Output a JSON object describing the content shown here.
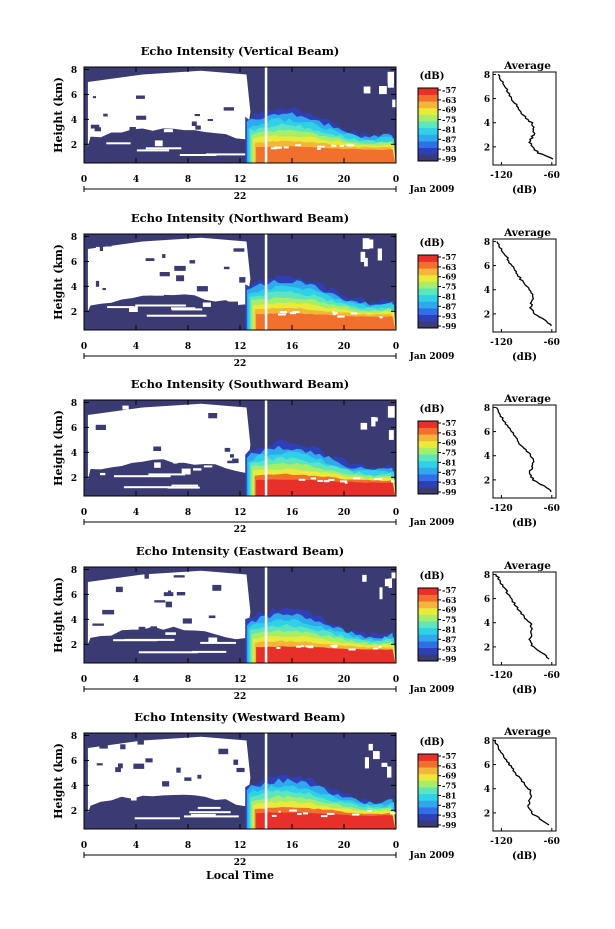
{
  "colors": {
    "background_fill": "#3b3b73",
    "scale": [
      "#3b3b73",
      "#2f3fb8",
      "#2f6fe8",
      "#2fa8ee",
      "#2fd0e8",
      "#5be6c0",
      "#a6ee6a",
      "#eaea3a",
      "#f5b43a",
      "#f2702e",
      "#e8302a"
    ]
  },
  "shared": {
    "time_ticks": [
      "0",
      "4",
      "8",
      "12",
      "16",
      "20",
      "0"
    ],
    "date_label": "22",
    "date_suffix": "Jan 2009",
    "height_label": "Height (km)",
    "height_ticks": [
      "2",
      "4",
      "6",
      "8"
    ],
    "unit_label": "(dB)",
    "colorbar_ticks": [
      "-57",
      "-63",
      "-69",
      "-75",
      "-81",
      "-87",
      "-93",
      "-99"
    ],
    "average_title": "Average",
    "average_xlabel": "(dB)",
    "x_axis_label": "Local Time"
  },
  "chart_data": [
    {
      "type": "heatmap",
      "title": "Echo Intensity (Vertical Beam)",
      "xlabel": "",
      "ylabel": "Height (km)",
      "xlim": [
        0,
        24
      ],
      "ylim": [
        0.5,
        8.2
      ],
      "colorbar": {
        "label": "(dB)",
        "range": [
          -99,
          -57
        ]
      },
      "surface_max_db": -60,
      "profile": {
        "title": "Average",
        "xlabel": "(dB)",
        "xticks": [
          "-120",
          "-60"
        ],
        "xlim": [
          -130,
          -55
        ],
        "ylim": [
          0.5,
          8.2
        ],
        "y": [
          1.0,
          1.5,
          2.0,
          2.5,
          3.0,
          3.5,
          4.0,
          4.5,
          5.0,
          5.5,
          6.0,
          6.5,
          7.0,
          7.5,
          8.0
        ],
        "x": [
          -58,
          -76,
          -84,
          -86,
          -82,
          -81,
          -84,
          -92,
          -98,
          -102,
          -108,
          -112,
          -116,
          -120,
          -124
        ]
      }
    },
    {
      "type": "heatmap",
      "title": "Echo Intensity (Northward Beam)",
      "xlabel": "",
      "ylabel": "Height (km)",
      "xlim": [
        0,
        24
      ],
      "ylim": [
        0.5,
        8.2
      ],
      "colorbar": {
        "label": "(dB)",
        "range": [
          -99,
          -57
        ]
      },
      "surface_max_db": -60,
      "profile": {
        "title": "Average",
        "xlabel": "(dB)",
        "xticks": [
          "-120",
          "-60"
        ],
        "xlim": [
          -130,
          -55
        ],
        "ylim": [
          0.5,
          8.2
        ],
        "y": [
          1.0,
          1.5,
          2.0,
          2.5,
          3.0,
          3.5,
          4.0,
          4.5,
          5.0,
          5.5,
          6.0,
          6.5,
          7.0,
          7.5,
          8.0
        ],
        "x": [
          -60,
          -68,
          -80,
          -85,
          -84,
          -82,
          -86,
          -93,
          -98,
          -103,
          -108,
          -112,
          -117,
          -121,
          -125
        ]
      }
    },
    {
      "type": "heatmap",
      "title": "Echo Intensity (Southward Beam)",
      "xlabel": "",
      "ylabel": "Height (km)",
      "xlim": [
        0,
        24
      ],
      "ylim": [
        0.5,
        8.2
      ],
      "colorbar": {
        "label": "(dB)",
        "range": [
          -99,
          -57
        ]
      },
      "surface_max_db": -58,
      "profile": {
        "title": "Average",
        "xlabel": "(dB)",
        "xticks": [
          "-120",
          "-60"
        ],
        "xlim": [
          -130,
          -55
        ],
        "ylim": [
          0.5,
          8.2
        ],
        "y": [
          1.0,
          1.5,
          2.0,
          2.5,
          3.0,
          3.5,
          4.0,
          4.5,
          5.0,
          5.5,
          6.0,
          6.5,
          7.0,
          7.5,
          8.0
        ],
        "x": [
          -60,
          -70,
          -82,
          -86,
          -84,
          -82,
          -85,
          -92,
          -98,
          -103,
          -108,
          -113,
          -118,
          -122,
          -126
        ]
      }
    },
    {
      "type": "heatmap",
      "title": "Echo Intensity (Eastward Beam)",
      "xlabel": "",
      "ylabel": "Height (km)",
      "xlim": [
        0,
        24
      ],
      "ylim": [
        0.5,
        8.2
      ],
      "colorbar": {
        "label": "(dB)",
        "range": [
          -99,
          -57
        ]
      },
      "surface_max_db": -59,
      "profile": {
        "title": "Average",
        "xlabel": "(dB)",
        "xticks": [
          "-120",
          "-60"
        ],
        "xlim": [
          -130,
          -55
        ],
        "ylim": [
          0.5,
          8.2
        ],
        "y": [
          1.0,
          1.5,
          2.0,
          2.5,
          3.0,
          3.5,
          4.0,
          4.5,
          5.0,
          5.5,
          6.0,
          6.5,
          7.0,
          7.5,
          8.0
        ],
        "x": [
          -62,
          -72,
          -82,
          -86,
          -85,
          -83,
          -86,
          -93,
          -99,
          -104,
          -109,
          -113,
          -118,
          -122,
          -126
        ]
      }
    },
    {
      "type": "heatmap",
      "title": "Echo Intensity (Westward Beam)",
      "xlabel": "Local Time",
      "ylabel": "Height (km)",
      "xlim": [
        0,
        24
      ],
      "ylim": [
        0.5,
        8.2
      ],
      "colorbar": {
        "label": "(dB)",
        "range": [
          -99,
          -57
        ]
      },
      "surface_max_db": -58,
      "profile": {
        "title": "Average",
        "xlabel": "(dB)",
        "xticks": [
          "-120",
          "-60"
        ],
        "xlim": [
          -130,
          -55
        ],
        "ylim": [
          0.5,
          8.2
        ],
        "y": [
          1.0,
          1.5,
          2.0,
          2.5,
          3.0,
          3.5,
          4.0,
          4.5,
          5.0,
          5.5,
          6.0,
          6.5,
          7.0,
          7.5,
          8.0
        ],
        "x": [
          -62,
          -74,
          -84,
          -88,
          -86,
          -84,
          -87,
          -94,
          -100,
          -105,
          -110,
          -115,
          -120,
          -124,
          -127
        ]
      }
    }
  ]
}
